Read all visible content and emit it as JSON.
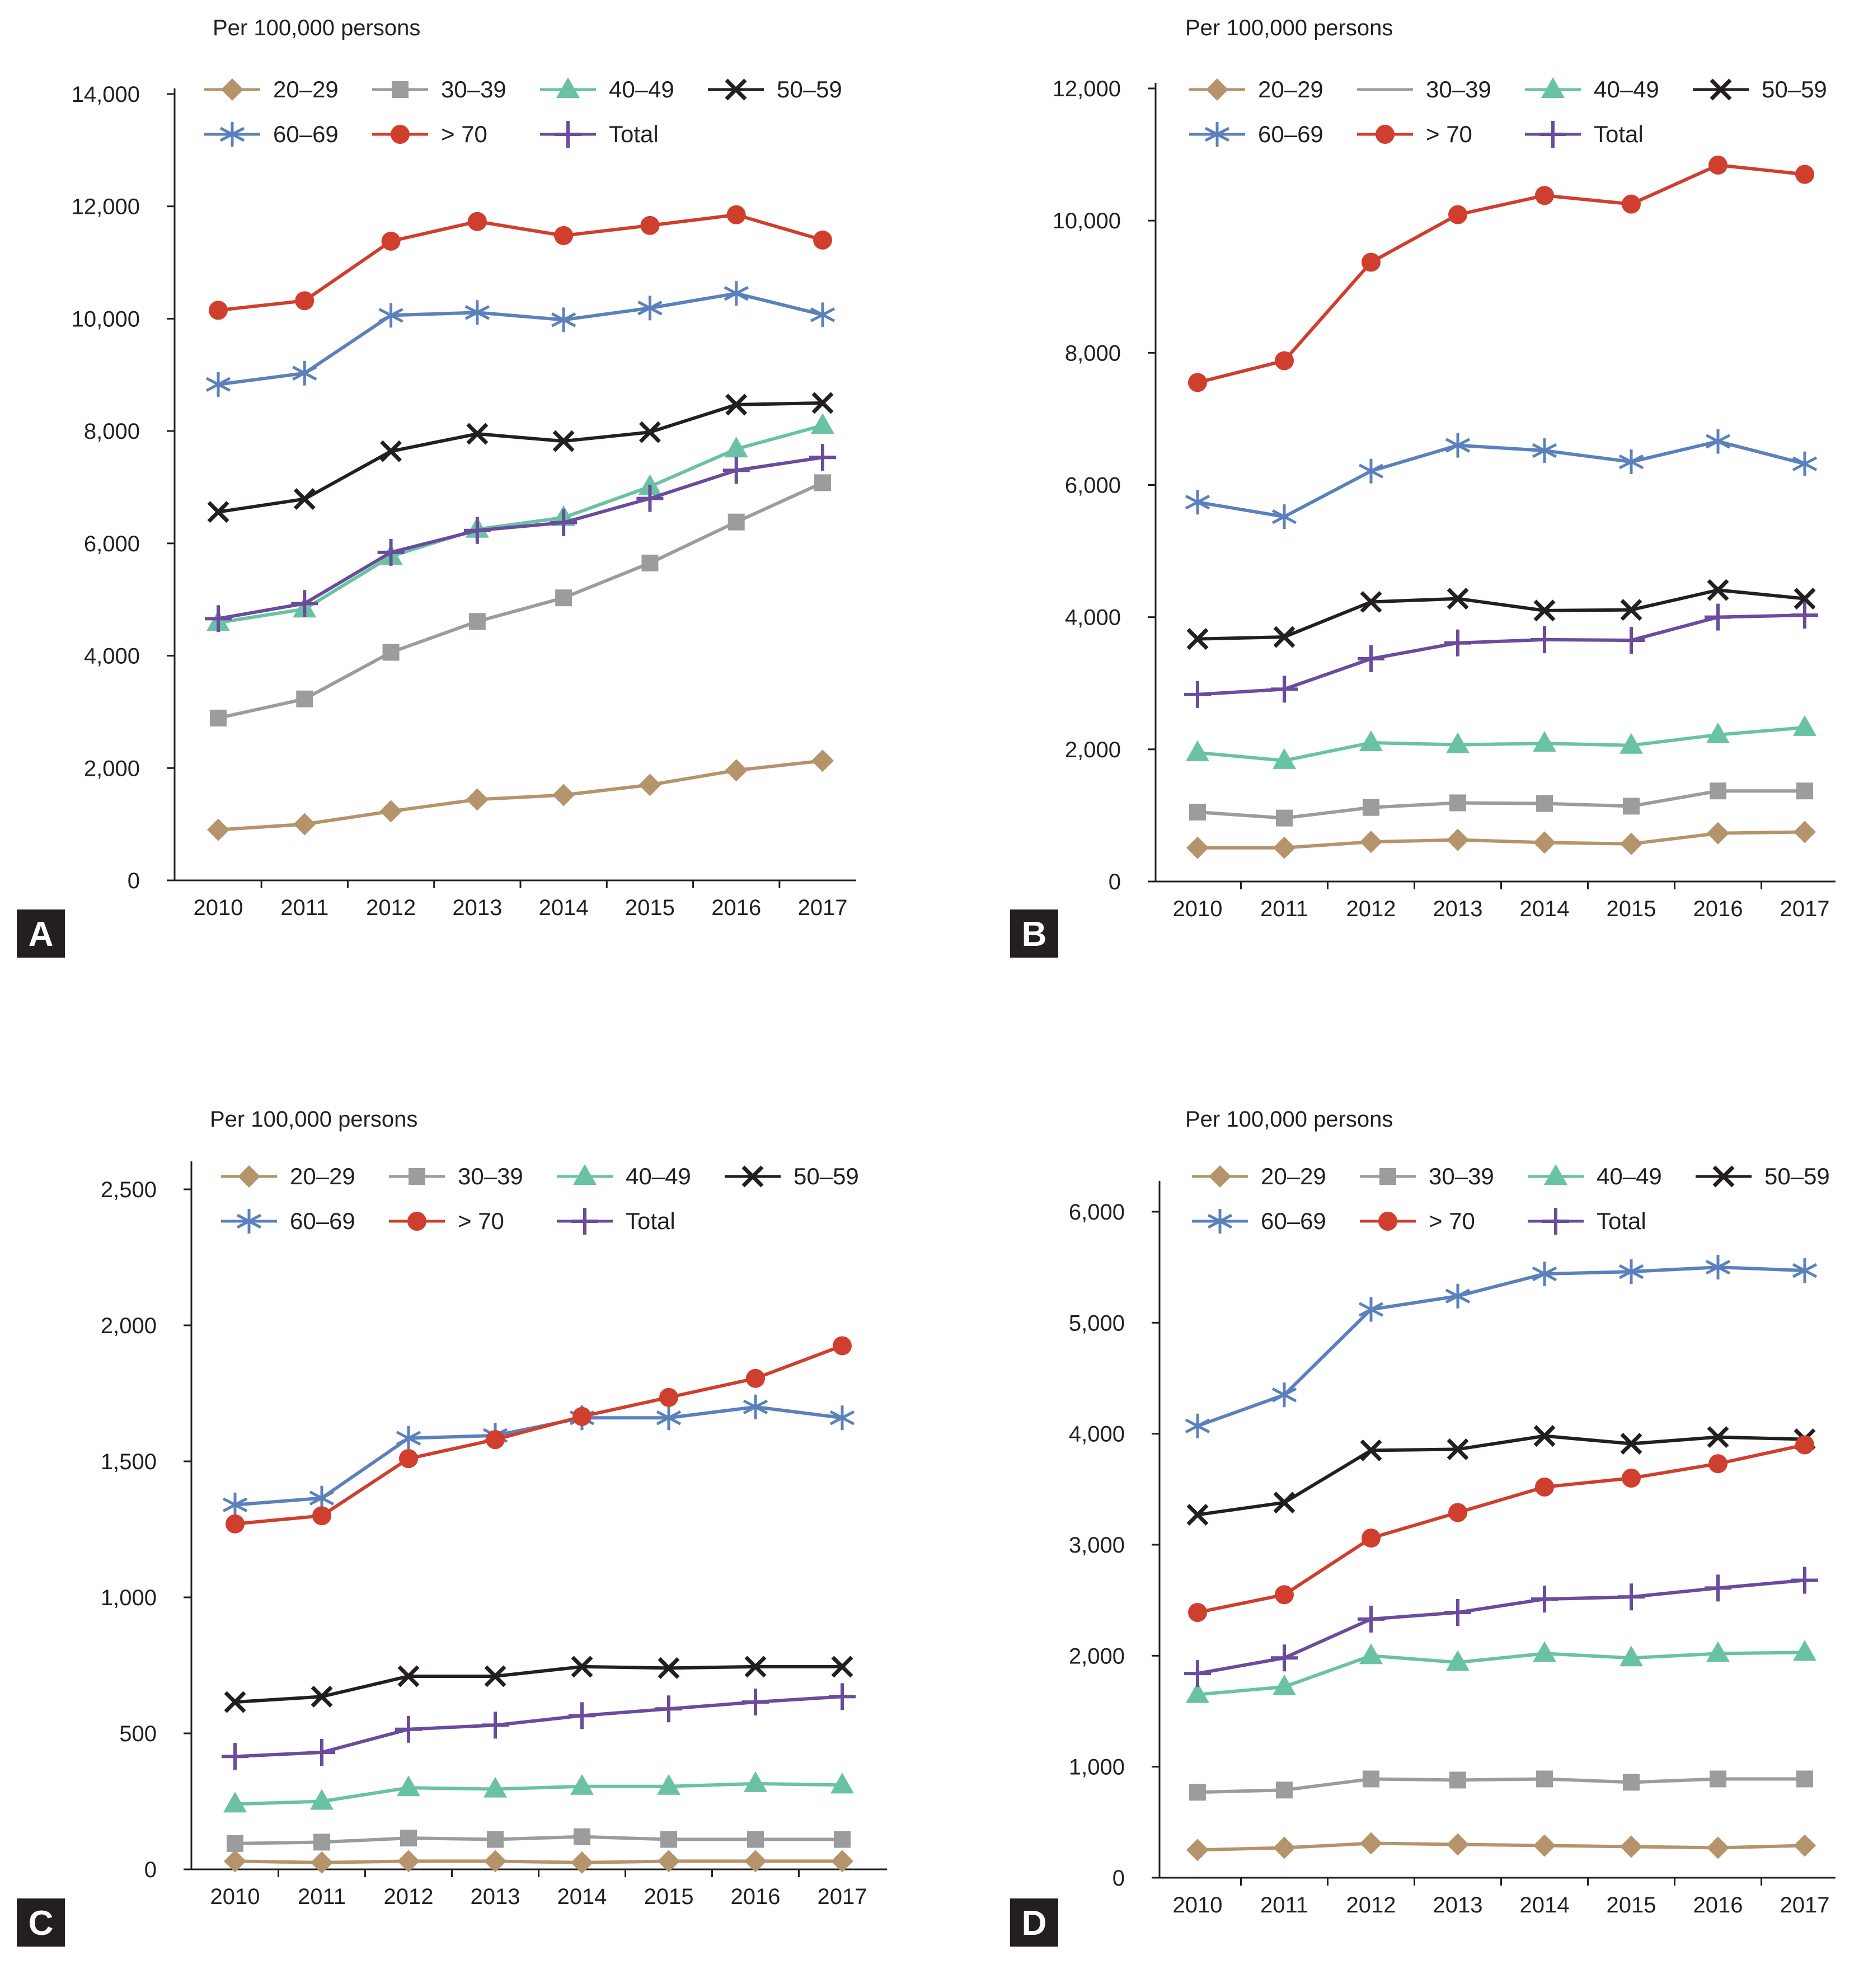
{
  "chart_data": [
    {
      "panel": "A",
      "type": "line",
      "unit_label": "Per 100,000 persons",
      "categories": [
        "2010",
        "2011",
        "2012",
        "2013",
        "2014",
        "2015",
        "2016",
        "2017"
      ],
      "ylim": [
        0,
        14000
      ],
      "yticks": [
        0,
        2000,
        4000,
        6000,
        8000,
        10000,
        12000,
        14000
      ],
      "ytick_labels": [
        "0",
        "2,000",
        "4,000",
        "6,000",
        "8,000",
        "10,000",
        "12,000",
        "14,000"
      ],
      "series": [
        {
          "name": "20–29",
          "values": [
            900,
            1000,
            1230,
            1440,
            1520,
            1700,
            1960,
            2130
          ]
        },
        {
          "name": "30–39",
          "values": [
            2890,
            3230,
            4060,
            4610,
            5030,
            5650,
            6380,
            7080
          ]
        },
        {
          "name": "40–49",
          "values": [
            4590,
            4830,
            5770,
            6250,
            6460,
            7010,
            7680,
            8100
          ]
        },
        {
          "name": "50–59",
          "values": [
            6560,
            6790,
            7640,
            7950,
            7820,
            7980,
            8470,
            8500
          ]
        },
        {
          "name": "60–69",
          "values": [
            8830,
            9030,
            10060,
            10110,
            9980,
            10190,
            10450,
            10070
          ]
        },
        {
          "name": "> 70",
          "values": [
            10150,
            10320,
            11380,
            11730,
            11480,
            11660,
            11850,
            11400
          ]
        },
        {
          "name": "Total",
          "values": [
            4660,
            4930,
            5840,
            6230,
            6370,
            6800,
            7300,
            7530
          ]
        }
      ]
    },
    {
      "panel": "B",
      "type": "line",
      "unit_label": "Per 100,000 persons",
      "categories": [
        "2010",
        "2011",
        "2012",
        "2013",
        "2014",
        "2015",
        "2016",
        "2017"
      ],
      "ylim": [
        0,
        12000
      ],
      "yticks": [
        0,
        2000,
        4000,
        6000,
        8000,
        10000,
        12000
      ],
      "ytick_labels": [
        "0",
        "2,000",
        "4,000",
        "6,000",
        "8,000",
        "10,000",
        "12,000"
      ],
      "series": [
        {
          "name": "20–29",
          "values": [
            510,
            510,
            600,
            630,
            590,
            570,
            730,
            750
          ]
        },
        {
          "name": "30–39",
          "values": [
            1050,
            960,
            1120,
            1190,
            1180,
            1140,
            1370,
            1370
          ]
        },
        {
          "name": "40–49",
          "values": [
            1950,
            1830,
            2100,
            2070,
            2090,
            2060,
            2220,
            2330
          ]
        },
        {
          "name": "50–59",
          "values": [
            3670,
            3700,
            4230,
            4280,
            4100,
            4110,
            4410,
            4280
          ]
        },
        {
          "name": "60–69",
          "values": [
            5740,
            5520,
            6210,
            6600,
            6520,
            6350,
            6660,
            6320
          ]
        },
        {
          "name": "> 70",
          "values": [
            7550,
            7880,
            9370,
            10090,
            10380,
            10250,
            10840,
            10700
          ]
        },
        {
          "name": "Total",
          "values": [
            2830,
            2910,
            3370,
            3610,
            3660,
            3650,
            4000,
            4030
          ]
        }
      ]
    },
    {
      "panel": "C",
      "type": "line",
      "unit_label": "Per 100,000 persons",
      "categories": [
        "2010",
        "2011",
        "2012",
        "2013",
        "2014",
        "2015",
        "2016",
        "2017"
      ],
      "ylim": [
        0,
        2500
      ],
      "yticks": [
        0,
        500,
        1000,
        1500,
        2000,
        2500
      ],
      "ytick_labels": [
        "0",
        "500",
        "1,000",
        "1,500",
        "2,000",
        "2,500"
      ],
      "series": [
        {
          "name": "20–29",
          "values": [
            30,
            25,
            30,
            30,
            25,
            30,
            30,
            30
          ]
        },
        {
          "name": "30–39",
          "values": [
            95,
            100,
            115,
            110,
            120,
            110,
            110,
            110
          ]
        },
        {
          "name": "40–49",
          "values": [
            240,
            250,
            300,
            295,
            305,
            305,
            315,
            310
          ]
        },
        {
          "name": "50–59",
          "values": [
            615,
            635,
            710,
            710,
            745,
            740,
            745,
            745
          ]
        },
        {
          "name": "60–69",
          "values": [
            1340,
            1365,
            1585,
            1595,
            1660,
            1660,
            1700,
            1660
          ]
        },
        {
          "name": "> 70",
          "values": [
            1270,
            1300,
            1510,
            1580,
            1665,
            1735,
            1805,
            1925
          ]
        },
        {
          "name": "Total",
          "values": [
            415,
            430,
            515,
            530,
            565,
            590,
            615,
            635
          ]
        }
      ]
    },
    {
      "panel": "D",
      "type": "line",
      "unit_label": "Per 100,000 persons",
      "categories": [
        "2010",
        "2011",
        "2012",
        "2013",
        "2014",
        "2015",
        "2016",
        "2017"
      ],
      "ylim": [
        0,
        6000
      ],
      "yticks": [
        0,
        1000,
        2000,
        3000,
        4000,
        5000,
        6000
      ],
      "ytick_labels": [
        "0",
        "1,000",
        "2,000",
        "3,000",
        "4,000",
        "5,000",
        "6,000"
      ],
      "series": [
        {
          "name": "20–29",
          "values": [
            250,
            270,
            310,
            300,
            290,
            280,
            270,
            290
          ]
        },
        {
          "name": "30–39",
          "values": [
            770,
            790,
            890,
            880,
            890,
            860,
            890,
            890
          ]
        },
        {
          "name": "40–49",
          "values": [
            1650,
            1720,
            2000,
            1940,
            2020,
            1980,
            2020,
            2030
          ]
        },
        {
          "name": "50–59",
          "values": [
            3270,
            3380,
            3850,
            3860,
            3980,
            3910,
            3970,
            3950
          ]
        },
        {
          "name": "60–69",
          "values": [
            4070,
            4350,
            5120,
            5240,
            5440,
            5460,
            5500,
            5470
          ]
        },
        {
          "name": "> 70",
          "values": [
            2390,
            2550,
            3060,
            3290,
            3520,
            3600,
            3730,
            3900
          ]
        },
        {
          "name": "Total",
          "values": [
            1840,
            1980,
            2330,
            2390,
            2510,
            2530,
            2610,
            2680
          ]
        }
      ]
    }
  ],
  "series_styles": [
    {
      "name": "20–29",
      "color": "#b5946b",
      "marker": "diamond"
    },
    {
      "name": "30–39",
      "color": "#9b9c9e",
      "marker": "square"
    },
    {
      "name": "40–49",
      "color": "#69c2a4",
      "marker": "triangle"
    },
    {
      "name": "50–59",
      "color": "#231f20",
      "marker": "x"
    },
    {
      "name": "60–69",
      "color": "#5b81bd",
      "marker": "asterisk"
    },
    {
      "name": "> 70",
      "color": "#d03e2d",
      "marker": "circle"
    },
    {
      "name": "Total",
      "color": "#6a4b9c",
      "marker": "plus"
    }
  ]
}
